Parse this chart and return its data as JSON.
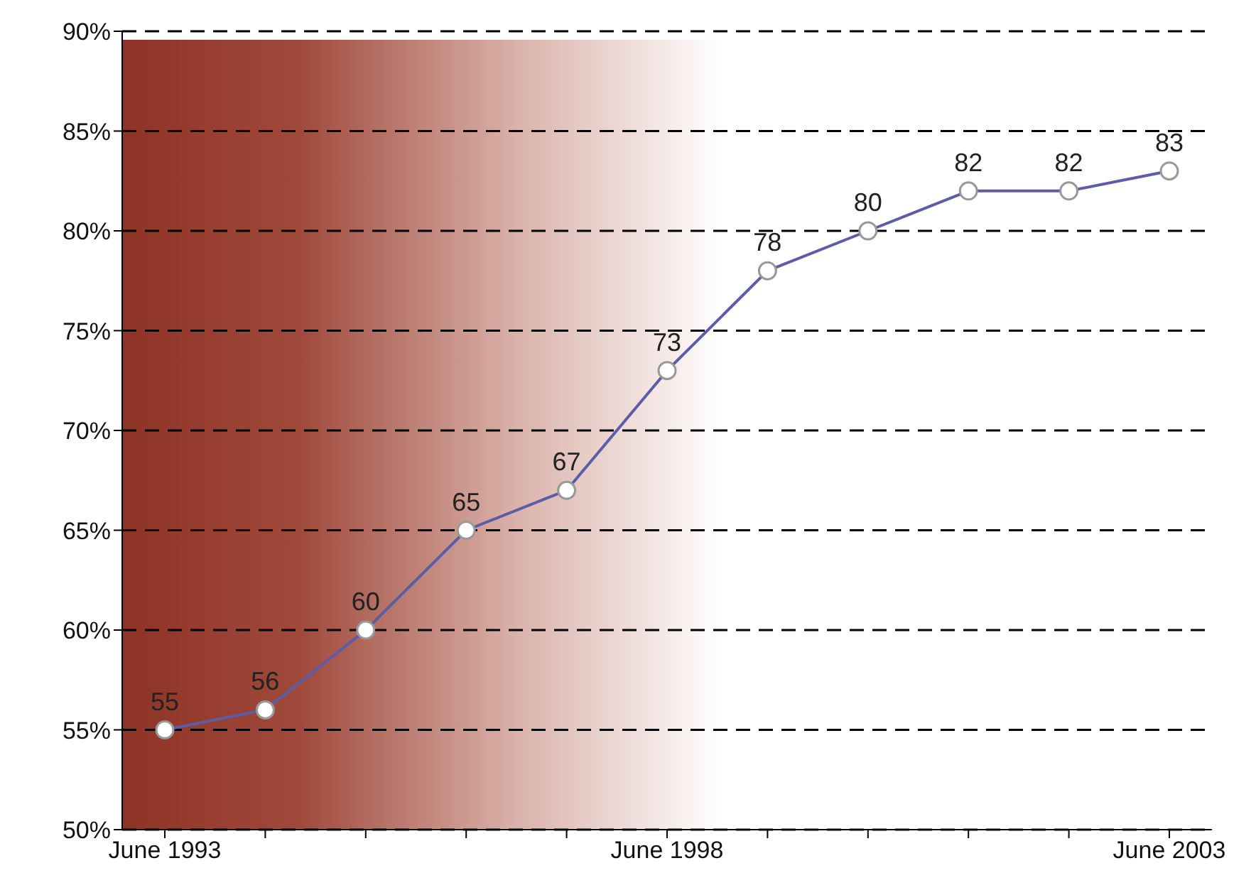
{
  "chart_data": {
    "type": "line",
    "categories": [
      "June 1993",
      null,
      null,
      null,
      null,
      "June 1998",
      null,
      null,
      null,
      null,
      "June 2003"
    ],
    "series": [
      {
        "color": "#5c5ca8",
        "values": [
          55,
          56,
          60,
          65,
          67,
          73,
          78,
          80,
          82,
          82,
          83
        ]
      }
    ],
    "ylim": [
      50,
      90
    ],
    "yticks": [
      {
        "value": 50,
        "label": "50%"
      },
      {
        "value": 55,
        "label": "55%"
      },
      {
        "value": 60,
        "label": "60%"
      },
      {
        "value": 65,
        "label": "65%"
      },
      {
        "value": 70,
        "label": "70%"
      },
      {
        "value": 75,
        "label": "75%"
      },
      {
        "value": 80,
        "label": "80%"
      },
      {
        "value": 85,
        "label": "85%"
      },
      {
        "value": 90,
        "label": "90%"
      }
    ],
    "grid": "y",
    "marker": "circle",
    "line_style": "solid",
    "data_labels": true
  }
}
